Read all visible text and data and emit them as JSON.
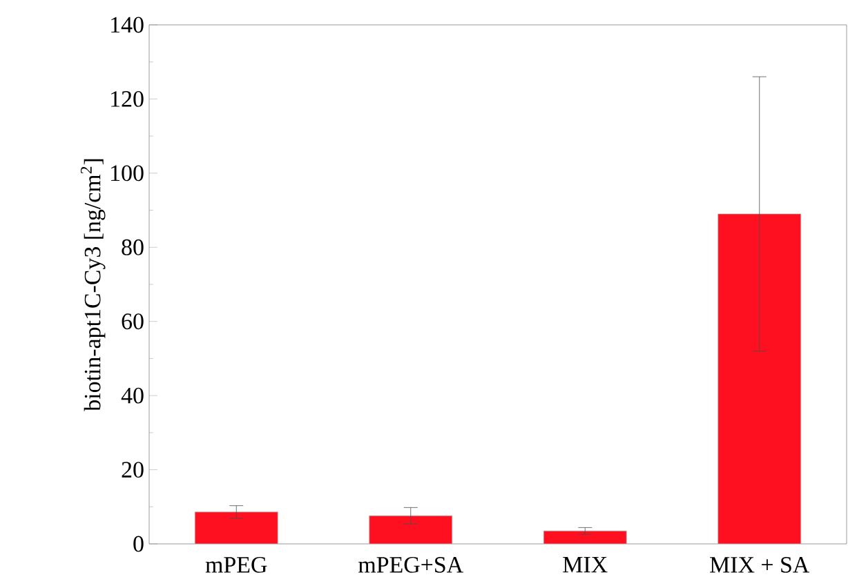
{
  "chart_data": {
    "type": "bar",
    "ylabel": "biotin-apt1C-Cy3 [ng/cm$^{2}$]",
    "categories": [
      "mPEG",
      "mPEG+SA",
      "MIX",
      "MIX + SA"
    ],
    "values": [
      8.6,
      7.6,
      3.5,
      89
    ],
    "errors": [
      1.7,
      2.2,
      0.9,
      37
    ],
    "color": "#ff1020",
    "ylim": [
      0,
      140
    ],
    "yticks": [
      0,
      20,
      40,
      60,
      80,
      100,
      120,
      140
    ],
    "grid": false
  }
}
